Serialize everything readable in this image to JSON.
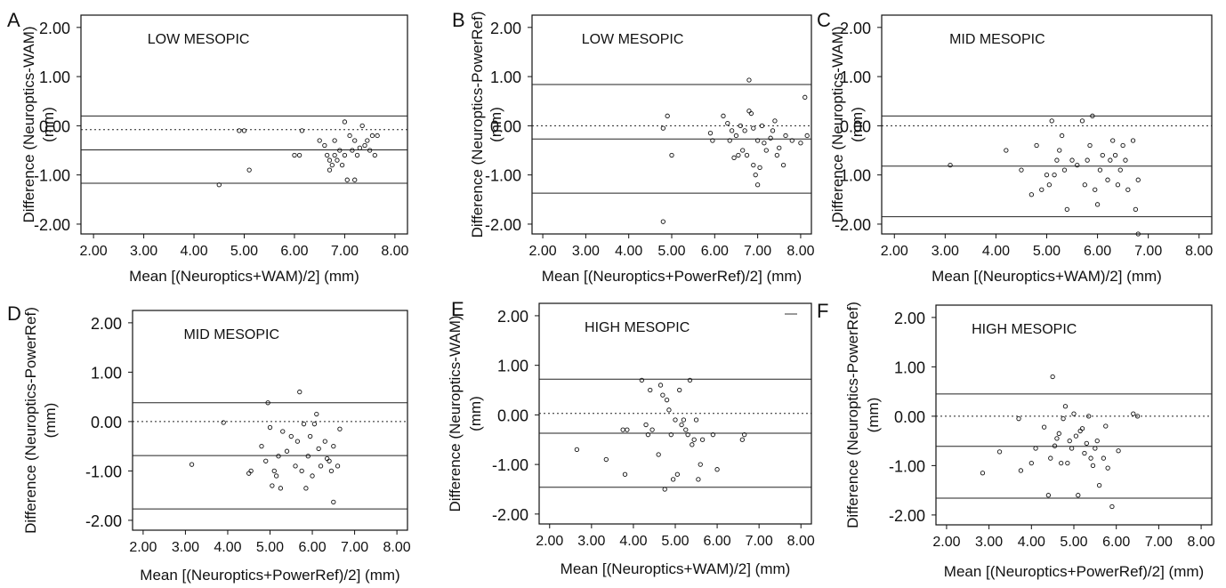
{
  "chart_data": [
    {
      "panel_letter": "A",
      "type": "scatter",
      "title": "LOW MESOPIC",
      "xlabel": "Mean [(Neuroptics+WAM)/2] (mm)",
      "ylabel": "Difference (Neuroptics-WAM)\n(mm)",
      "xlim": [
        1.75,
        8.25
      ],
      "ylim": [
        -2.2,
        2.25
      ],
      "xticks": [
        "2.00",
        "3.00",
        "4.00",
        "5.00",
        "6.00",
        "7.00",
        "8.00"
      ],
      "yticks": [
        "2.00",
        "1.00",
        "0.00",
        "-1.00",
        "-2.00"
      ],
      "reference_lines": [
        {
          "y": -0.08,
          "style": "dotted"
        },
        {
          "y": 0.2,
          "style": "solid"
        },
        {
          "y": -0.49,
          "style": "solid"
        },
        {
          "y": -1.17,
          "style": "solid"
        }
      ],
      "points": [
        [
          4.5,
          -1.2
        ],
        [
          4.9,
          -0.1
        ],
        [
          5.0,
          -0.1
        ],
        [
          5.1,
          -0.9
        ],
        [
          6.0,
          -0.6
        ],
        [
          6.1,
          -0.6
        ],
        [
          6.15,
          -0.1
        ],
        [
          6.5,
          -0.3
        ],
        [
          6.6,
          -0.4
        ],
        [
          6.65,
          -0.6
        ],
        [
          6.7,
          -0.9
        ],
        [
          6.7,
          -0.7
        ],
        [
          6.75,
          -0.8
        ],
        [
          6.8,
          -0.3
        ],
        [
          6.8,
          -0.6
        ],
        [
          6.85,
          -0.7
        ],
        [
          6.9,
          -0.5
        ],
        [
          6.95,
          -0.8
        ],
        [
          7.0,
          0.08
        ],
        [
          7.0,
          -0.6
        ],
        [
          7.05,
          -1.1
        ],
        [
          7.1,
          -0.2
        ],
        [
          7.15,
          -0.5
        ],
        [
          7.2,
          -1.1
        ],
        [
          7.2,
          -0.3
        ],
        [
          7.25,
          -0.6
        ],
        [
          7.3,
          -0.45
        ],
        [
          7.35,
          0.0
        ],
        [
          7.4,
          -0.4
        ],
        [
          7.45,
          -0.3
        ],
        [
          7.5,
          -0.5
        ],
        [
          7.55,
          -0.2
        ],
        [
          7.6,
          -0.6
        ],
        [
          7.65,
          -0.2
        ]
      ]
    },
    {
      "panel_letter": "B",
      "type": "scatter",
      "title": "LOW MESOPIC",
      "xlabel": "Mean [(Neuroptics+PowerRef)/2] (mm)",
      "ylabel": "Difference (Neuroptics-PowerRef)\n(mm)",
      "xlim": [
        1.75,
        8.25
      ],
      "ylim": [
        -2.2,
        2.25
      ],
      "xticks": [
        "2.00",
        "3.00",
        "4.00",
        "5.00",
        "6.00",
        "7.00",
        "8.00"
      ],
      "yticks": [
        "2.00",
        "1.00",
        "0.00",
        "-1.00",
        "-2.00"
      ],
      "reference_lines": [
        {
          "y": 0.0,
          "style": "dotted"
        },
        {
          "y": 0.84,
          "style": "solid"
        },
        {
          "y": -0.27,
          "style": "solid"
        },
        {
          "y": -1.37,
          "style": "solid"
        }
      ],
      "points": [
        [
          4.8,
          -1.95
        ],
        [
          4.8,
          -0.05
        ],
        [
          4.9,
          0.2
        ],
        [
          5.0,
          -0.6
        ],
        [
          5.9,
          -0.15
        ],
        [
          5.95,
          -0.3
        ],
        [
          6.2,
          0.2
        ],
        [
          6.3,
          0.05
        ],
        [
          6.35,
          -0.3
        ],
        [
          6.4,
          -0.1
        ],
        [
          6.45,
          -0.65
        ],
        [
          6.5,
          -0.2
        ],
        [
          6.55,
          -0.6
        ],
        [
          6.6,
          0.0
        ],
        [
          6.65,
          -0.5
        ],
        [
          6.7,
          -0.1
        ],
        [
          6.75,
          -0.6
        ],
        [
          6.8,
          0.93
        ],
        [
          6.8,
          0.3
        ],
        [
          6.85,
          0.25
        ],
        [
          6.9,
          -0.05
        ],
        [
          6.9,
          -0.8
        ],
        [
          6.95,
          -1.0
        ],
        [
          7.0,
          -1.2
        ],
        [
          7.0,
          -0.3
        ],
        [
          7.05,
          -0.85
        ],
        [
          7.1,
          0.0
        ],
        [
          7.15,
          -0.35
        ],
        [
          7.2,
          -0.5
        ],
        [
          7.3,
          -0.25
        ],
        [
          7.35,
          -0.1
        ],
        [
          7.4,
          0.1
        ],
        [
          7.45,
          -0.6
        ],
        [
          7.5,
          -0.45
        ],
        [
          7.6,
          -0.8
        ],
        [
          7.65,
          -0.2
        ],
        [
          7.8,
          -0.3
        ],
        [
          8.0,
          -0.35
        ],
        [
          8.1,
          0.58
        ],
        [
          8.15,
          -0.2
        ]
      ]
    },
    {
      "panel_letter": "C",
      "type": "scatter",
      "title": "MID MESOPIC",
      "xlabel": "Mean [(Neuroptics+WAM)/2] (mm)",
      "ylabel": "Difference (Neuroptics-WAM)\n(mm)",
      "xlim": [
        1.75,
        8.25
      ],
      "ylim": [
        -2.2,
        2.25
      ],
      "xticks": [
        "2.00",
        "3.00",
        "4.00",
        "5.00",
        "6.00",
        "7.00",
        "8.00"
      ],
      "yticks": [
        "2.00",
        "1.00",
        "0.00",
        "-1.00",
        "-2.00"
      ],
      "reference_lines": [
        {
          "y": 0.0,
          "style": "dotted"
        },
        {
          "y": 0.2,
          "style": "solid"
        },
        {
          "y": -0.82,
          "style": "solid"
        },
        {
          "y": -1.85,
          "style": "solid"
        }
      ],
      "points": [
        [
          3.1,
          -0.8
        ],
        [
          4.2,
          -0.5
        ],
        [
          4.5,
          -0.9
        ],
        [
          4.7,
          -1.4
        ],
        [
          4.8,
          -0.4
        ],
        [
          4.9,
          -1.3
        ],
        [
          5.0,
          -1.0
        ],
        [
          5.05,
          -1.2
        ],
        [
          5.1,
          0.1
        ],
        [
          5.15,
          -1.0
        ],
        [
          5.2,
          -0.7
        ],
        [
          5.25,
          -0.5
        ],
        [
          5.3,
          -0.2
        ],
        [
          5.35,
          -0.9
        ],
        [
          5.4,
          -1.7
        ],
        [
          5.5,
          -0.7
        ],
        [
          5.6,
          -0.8
        ],
        [
          5.7,
          0.1
        ],
        [
          5.75,
          -1.2
        ],
        [
          5.8,
          -0.7
        ],
        [
          5.85,
          -0.4
        ],
        [
          5.9,
          0.2
        ],
        [
          5.95,
          -1.3
        ],
        [
          6.0,
          -1.6
        ],
        [
          6.05,
          -0.9
        ],
        [
          6.1,
          -0.6
        ],
        [
          6.2,
          -1.1
        ],
        [
          6.25,
          -0.7
        ],
        [
          6.3,
          -0.3
        ],
        [
          6.35,
          -0.6
        ],
        [
          6.4,
          -1.2
        ],
        [
          6.45,
          -0.9
        ],
        [
          6.5,
          -0.4
        ],
        [
          6.55,
          -0.7
        ],
        [
          6.6,
          -1.3
        ],
        [
          6.7,
          -0.3
        ],
        [
          6.8,
          -1.1
        ],
        [
          6.75,
          -1.7
        ],
        [
          6.8,
          -2.2
        ]
      ]
    },
    {
      "panel_letter": "D",
      "type": "scatter",
      "title": "MID MESOPIC",
      "xlabel": "Mean [(Neuroptics+PowerRef)/2] (mm)",
      "ylabel": "Difference (Neuroptics-PowerRef)\n(mm)",
      "xlim": [
        1.75,
        8.25
      ],
      "ylim": [
        -2.2,
        2.25
      ],
      "xticks": [
        "2.00",
        "3.00",
        "4.00",
        "5.00",
        "6.00",
        "7.00",
        "8.00"
      ],
      "yticks": [
        "2.00",
        "1.00",
        "0.00",
        "-1.00",
        "-2.00"
      ],
      "reference_lines": [
        {
          "y": 0.0,
          "style": "dotted"
        },
        {
          "y": 0.38,
          "style": "solid"
        },
        {
          "y": -0.69,
          "style": "solid"
        },
        {
          "y": -1.77,
          "style": "solid"
        }
      ],
      "points": [
        [
          3.15,
          -0.87
        ],
        [
          3.9,
          -0.02
        ],
        [
          4.5,
          -1.05
        ],
        [
          4.55,
          -1.0
        ],
        [
          4.8,
          -0.5
        ],
        [
          4.9,
          -0.8
        ],
        [
          4.95,
          0.38
        ],
        [
          5.0,
          -0.12
        ],
        [
          5.05,
          -1.3
        ],
        [
          5.1,
          -1.0
        ],
        [
          5.15,
          -1.1
        ],
        [
          5.2,
          -0.7
        ],
        [
          5.25,
          -1.35
        ],
        [
          5.3,
          -0.2
        ],
        [
          5.4,
          -0.6
        ],
        [
          5.5,
          -0.3
        ],
        [
          5.6,
          -0.9
        ],
        [
          5.65,
          -0.4
        ],
        [
          5.7,
          0.6
        ],
        [
          5.75,
          -1.0
        ],
        [
          5.8,
          -0.05
        ],
        [
          5.85,
          -1.35
        ],
        [
          5.9,
          -0.7
        ],
        [
          5.95,
          -0.3
        ],
        [
          6.0,
          -1.1
        ],
        [
          6.05,
          -0.05
        ],
        [
          6.1,
          0.15
        ],
        [
          6.15,
          -0.55
        ],
        [
          6.2,
          -0.9
        ],
        [
          6.3,
          -0.4
        ],
        [
          6.35,
          -0.75
        ],
        [
          6.4,
          -0.8
        ],
        [
          6.45,
          -1.0
        ],
        [
          6.5,
          -0.5
        ],
        [
          6.5,
          -1.63
        ],
        [
          6.6,
          -0.9
        ],
        [
          6.65,
          -0.15
        ]
      ]
    },
    {
      "panel_letter": "E",
      "type": "scatter",
      "title": "HIGH MESOPIC",
      "xlabel": "Mean [(Neuroptics+WAM)/2] (mm)",
      "ylabel": "Difference (Neuroptics-WAM)\n(mm)",
      "xlim": [
        1.75,
        8.25
      ],
      "ylim": [
        -2.2,
        2.25
      ],
      "xticks": [
        "2.00",
        "3.00",
        "4.00",
        "5.00",
        "6.00",
        "7.00",
        "8.00"
      ],
      "yticks": [
        "2.00",
        "1.00",
        "0.00",
        "-1.00",
        "-2.00"
      ],
      "reference_lines": [
        {
          "y": 0.03,
          "style": "dotted"
        },
        {
          "y": 0.72,
          "style": "solid"
        },
        {
          "y": -0.37,
          "style": "solid"
        },
        {
          "y": -1.46,
          "style": "solid"
        }
      ],
      "points": [
        [
          2.65,
          -0.7
        ],
        [
          3.35,
          -0.9
        ],
        [
          3.75,
          -0.3
        ],
        [
          3.8,
          -1.2
        ],
        [
          3.85,
          -0.3
        ],
        [
          4.2,
          0.7
        ],
        [
          4.3,
          -0.2
        ],
        [
          4.35,
          -0.4
        ],
        [
          4.4,
          0.5
        ],
        [
          4.45,
          -0.3
        ],
        [
          4.6,
          -0.8
        ],
        [
          4.65,
          0.6
        ],
        [
          4.7,
          0.4
        ],
        [
          4.75,
          -1.5
        ],
        [
          4.8,
          0.3
        ],
        [
          4.85,
          0.1
        ],
        [
          4.9,
          -0.4
        ],
        [
          4.95,
          -1.3
        ],
        [
          5.0,
          -0.1
        ],
        [
          5.05,
          -1.2
        ],
        [
          5.1,
          0.5
        ],
        [
          5.15,
          -0.2
        ],
        [
          5.2,
          -0.1
        ],
        [
          5.25,
          -0.3
        ],
        [
          5.3,
          -0.4
        ],
        [
          5.35,
          0.7
        ],
        [
          5.4,
          -0.6
        ],
        [
          5.45,
          -0.5
        ],
        [
          5.5,
          -0.1
        ],
        [
          5.55,
          -1.3
        ],
        [
          5.6,
          -1.0
        ],
        [
          5.65,
          -0.5
        ],
        [
          5.9,
          -0.4
        ],
        [
          6.0,
          -1.1
        ],
        [
          6.6,
          -0.5
        ],
        [
          6.65,
          -0.4
        ]
      ]
    },
    {
      "panel_letter": "F",
      "type": "scatter",
      "title": "HIGH MESOPIC",
      "xlabel": "Mean [(Neuroptics+PowerRef)/2] (mm)",
      "ylabel": "Difference (Neuroptics-PowerRef)\n(mm)",
      "xlim": [
        1.75,
        8.25
      ],
      "ylim": [
        -2.2,
        2.25
      ],
      "xticks": [
        "2.00",
        "3.00",
        "4.00",
        "5.00",
        "6.00",
        "7.00",
        "8.00"
      ],
      "yticks": [
        "2.00",
        "1.00",
        "0.00",
        "-1.00",
        "-2.00"
      ],
      "reference_lines": [
        {
          "y": 0.0,
          "style": "dotted"
        },
        {
          "y": 0.45,
          "style": "solid"
        },
        {
          "y": -0.61,
          "style": "solid"
        },
        {
          "y": -1.66,
          "style": "solid"
        }
      ],
      "points": [
        [
          2.85,
          -1.15
        ],
        [
          3.25,
          -0.72
        ],
        [
          3.7,
          -0.05
        ],
        [
          3.75,
          -1.1
        ],
        [
          4.0,
          -0.95
        ],
        [
          4.1,
          -0.65
        ],
        [
          4.3,
          -0.22
        ],
        [
          4.4,
          -1.6
        ],
        [
          4.45,
          -0.85
        ],
        [
          4.5,
          0.8
        ],
        [
          4.55,
          -0.6
        ],
        [
          4.6,
          -0.45
        ],
        [
          4.65,
          -0.35
        ],
        [
          4.7,
          -0.95
        ],
        [
          4.75,
          -0.05
        ],
        [
          4.8,
          0.2
        ],
        [
          4.85,
          -0.95
        ],
        [
          4.9,
          -0.5
        ],
        [
          4.95,
          -0.65
        ],
        [
          5.0,
          0.05
        ],
        [
          5.05,
          -0.4
        ],
        [
          5.1,
          -1.6
        ],
        [
          5.15,
          -0.3
        ],
        [
          5.2,
          -0.25
        ],
        [
          5.25,
          -0.75
        ],
        [
          5.3,
          -0.55
        ],
        [
          5.35,
          0.0
        ],
        [
          5.4,
          -0.85
        ],
        [
          5.45,
          -1.0
        ],
        [
          5.5,
          -0.65
        ],
        [
          5.55,
          -0.5
        ],
        [
          5.6,
          -1.4
        ],
        [
          5.7,
          -0.85
        ],
        [
          5.75,
          -0.2
        ],
        [
          5.8,
          -1.05
        ],
        [
          5.9,
          -1.83
        ],
        [
          6.05,
          -0.7
        ],
        [
          6.4,
          0.05
        ],
        [
          6.5,
          0.0
        ]
      ]
    }
  ]
}
